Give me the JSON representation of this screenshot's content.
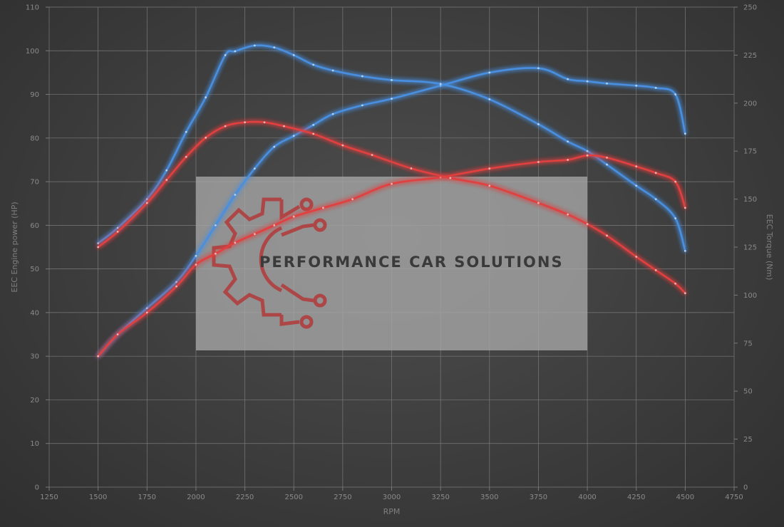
{
  "chart_data": {
    "type": "line",
    "xlabel": "RPM",
    "ylabel_left": "EEC Engine power (HP)",
    "ylabel_right": "EEC Torque (Nm)",
    "xlim": [
      1250,
      4750
    ],
    "xticks": [
      1250,
      1500,
      1750,
      2000,
      2250,
      2500,
      2750,
      3000,
      3250,
      3500,
      3750,
      4000,
      4250,
      4500,
      4750
    ],
    "ylim_left": [
      0,
      110
    ],
    "yticks_left": [
      0,
      10,
      20,
      30,
      40,
      50,
      60,
      70,
      80,
      90,
      100,
      110
    ],
    "ylim_right": [
      0,
      250
    ],
    "yticks_right": [
      0,
      25,
      50,
      75,
      100,
      125,
      150,
      175,
      200,
      225,
      250
    ],
    "grid": true,
    "series": [
      {
        "axis": "left",
        "color": "#4a8fe0",
        "x": [
          1500,
          1600,
          1750,
          1900,
          2000,
          2100,
          2200,
          2300,
          2400,
          2500,
          2600,
          2700,
          2850,
          3000,
          3250,
          3500,
          3750,
          3900,
          4000,
          4100,
          4250,
          4350,
          4450,
          4500
        ],
        "y": [
          30,
          35,
          41,
          47,
          53,
          60,
          67,
          73,
          78,
          80.5,
          83,
          85.5,
          87.5,
          89,
          92,
          95,
          96,
          93.5,
          93,
          92.5,
          92,
          91.5,
          90,
          81
        ]
      },
      {
        "axis": "right",
        "color": "#4a8fe0",
        "x": [
          1500,
          1600,
          1750,
          1850,
          1950,
          2050,
          2150,
          2200,
          2300,
          2400,
          2500,
          2600,
          2700,
          2850,
          3000,
          3250,
          3500,
          3750,
          3900,
          4000,
          4100,
          4250,
          4350,
          4450,
          4500
        ],
        "y": [
          127,
          135,
          150,
          165,
          185,
          203,
          225,
          227,
          230,
          229,
          225,
          220,
          217,
          214,
          212,
          210,
          202,
          189,
          180,
          175,
          168,
          157,
          150,
          140,
          123
        ]
      },
      {
        "axis": "left",
        "color": "#e04040",
        "x": [
          1500,
          1600,
          1750,
          1900,
          2000,
          2100,
          2200,
          2300,
          2400,
          2500,
          2650,
          2800,
          3000,
          3250,
          3500,
          3750,
          3900,
          4000,
          4100,
          4250,
          4350,
          4450,
          4500
        ],
        "y": [
          30,
          35,
          40,
          46,
          51,
          53.5,
          56,
          58,
          60,
          62,
          64,
          66,
          69.5,
          71,
          73,
          74.5,
          75,
          76,
          75.5,
          73.5,
          72,
          70,
          64
        ]
      },
      {
        "axis": "right",
        "color": "#e04040",
        "x": [
          1500,
          1600,
          1750,
          1850,
          1950,
          2050,
          2150,
          2250,
          2350,
          2450,
          2600,
          2750,
          2900,
          3100,
          3300,
          3500,
          3750,
          3900,
          4000,
          4100,
          4250,
          4350,
          4450,
          4500
        ],
        "y": [
          125,
          133,
          148,
          160,
          172,
          182,
          188,
          190,
          190,
          188,
          184,
          178,
          173,
          166,
          161,
          157,
          148,
          142,
          137,
          131,
          120,
          113,
          106,
          101
        ]
      }
    ]
  },
  "watermark": {
    "text": "PERFORMANCE CAR SOLUTIONS",
    "logo_color": "#b23a3a",
    "box_color": "#a8a8a8"
  }
}
